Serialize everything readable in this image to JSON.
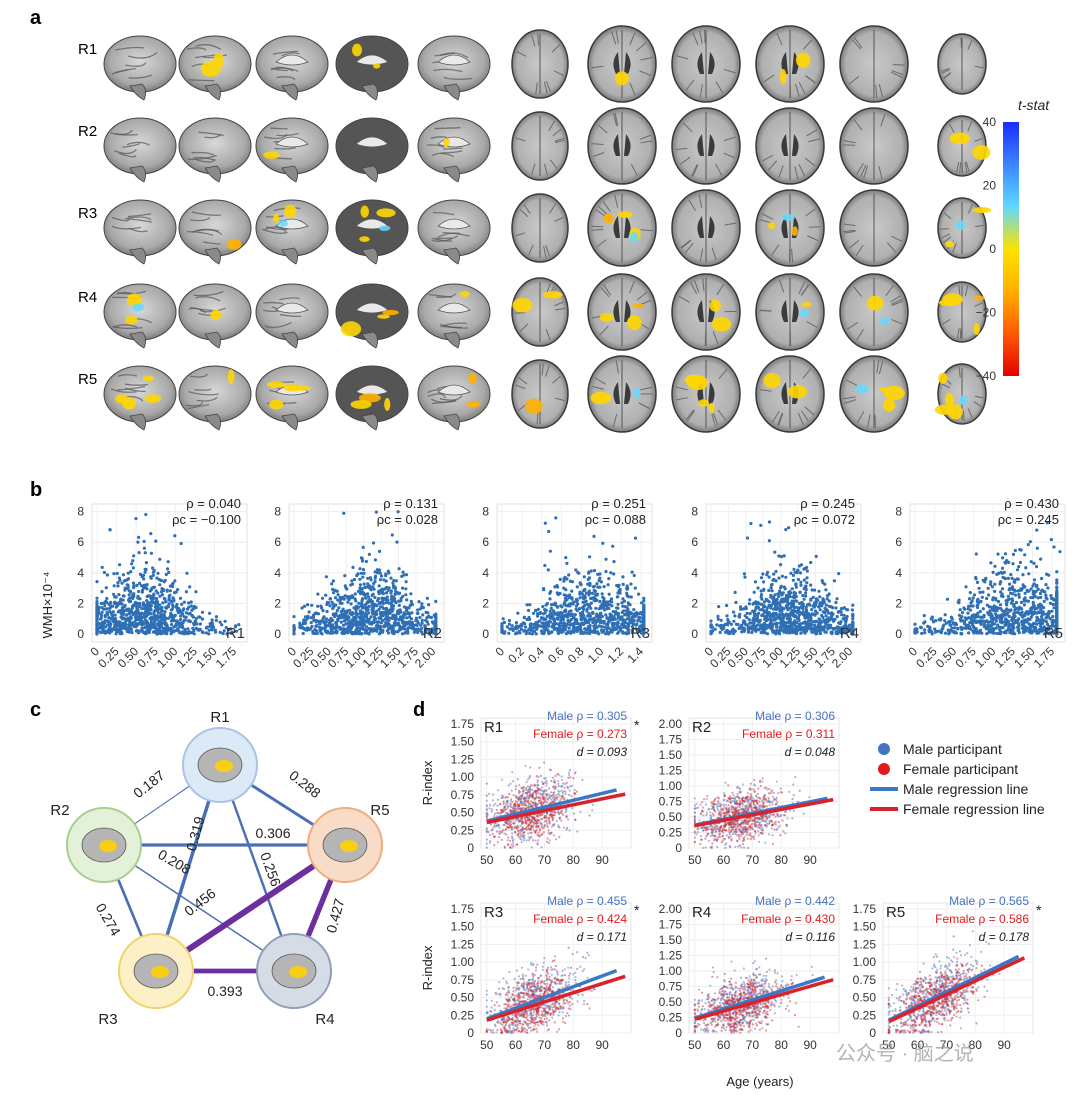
{
  "panels": {
    "a": "a",
    "b": "b",
    "c": "c",
    "d": "d"
  },
  "panel_a": {
    "rows": [
      "R1",
      "R2",
      "R3",
      "R4",
      "R5"
    ],
    "colorbar": {
      "title": "t-stat",
      "ticks": [
        "40",
        "20",
        "0",
        "−20",
        "−40"
      ],
      "colors": [
        "#1a2cff",
        "#3a86ff",
        "#5fd9ff",
        "#ffe100",
        "#ffb000",
        "#ff5a00",
        "#e60000"
      ]
    }
  },
  "panel_b": {
    "ylabel": "WMH×10⁻⁴",
    "yticks": [
      "8",
      "6",
      "4",
      "2",
      "0"
    ],
    "point_color": "#2e6fb5"
  },
  "panel_c": {
    "nodes": [
      "R1",
      "R2",
      "R3",
      "R4",
      "R5"
    ],
    "node_colors": [
      "#dce9f7",
      "#e3f1d8",
      "#fbf0c6",
      "#d5dce6",
      "#f9dcc7"
    ],
    "edge_colors": {
      "weak": "#4a6fb5",
      "strong": "#6b2fa0"
    }
  },
  "panel_d": {
    "ylabel": "R-index",
    "xlabel": "Age (years)",
    "legend": [
      {
        "label": "Male participant",
        "kind": "dot",
        "color": "#4472c4"
      },
      {
        "label": "Female participant",
        "kind": "dot",
        "color": "#e31a1c"
      },
      {
        "label": "Male regression line",
        "kind": "line",
        "color": "#3a78c8"
      },
      {
        "label": "Female regression line",
        "kind": "line",
        "color": "#d9232a"
      }
    ],
    "watermark": "公众号 · 脑之说"
  },
  "chart_data": [
    {
      "type": "scatter",
      "panel": "b",
      "ylabel": "WMH×10⁻⁴",
      "ylim": [
        0,
        8.5
      ],
      "series": [
        {
          "name": "R1",
          "rho": "ρ = 0.040",
          "rho_c": "ρc = −0.100",
          "xticks": [
            "0",
            "0.25",
            "0.50",
            "0.75",
            "1.00",
            "1.25",
            "1.50",
            "1.75"
          ],
          "xlim": [
            0,
            1.85
          ]
        },
        {
          "name": "R2",
          "rho": "ρ = 0.131",
          "rho_c": "ρc = 0.028",
          "xticks": [
            "0",
            "0.25",
            "0.50",
            "0.75",
            "1.00",
            "1.25",
            "1.50",
            "1.75",
            "2.00"
          ],
          "xlim": [
            0,
            2.05
          ]
        },
        {
          "name": "R3",
          "rho": "ρ = 0.251",
          "rho_c": "ρc = 0.088",
          "xticks": [
            "0",
            "0.2",
            "0.4",
            "0.6",
            "0.8",
            "1.0",
            "1.2",
            "1.4"
          ],
          "xlim": [
            0,
            1.5
          ]
        },
        {
          "name": "R4",
          "rho": "ρ = 0.245",
          "rho_c": "ρc = 0.072",
          "xticks": [
            "0",
            "0.25",
            "0.50",
            "0.75",
            "1.00",
            "1.25",
            "1.50",
            "1.75",
            "2.00"
          ],
          "xlim": [
            0,
            2.05
          ]
        },
        {
          "name": "R5",
          "rho": "ρ = 0.430",
          "rho_c": "ρc = 0.245",
          "xticks": [
            "0",
            "0.25",
            "0.50",
            "0.75",
            "1.00",
            "1.25",
            "1.50",
            "1.75"
          ],
          "xlim": [
            0,
            1.85
          ]
        }
      ]
    },
    {
      "type": "network",
      "panel": "c",
      "edges": [
        {
          "from": "R1",
          "to": "R2",
          "value": 0.187
        },
        {
          "from": "R1",
          "to": "R5",
          "value": 0.288
        },
        {
          "from": "R1",
          "to": "R3",
          "value": 0.319
        },
        {
          "from": "R1",
          "to": "R4",
          "value": 0.256
        },
        {
          "from": "R2",
          "to": "R5",
          "value": 0.306
        },
        {
          "from": "R2",
          "to": "R4",
          "value": 0.208
        },
        {
          "from": "R2",
          "to": "R3",
          "value": 0.274
        },
        {
          "from": "R3",
          "to": "R5",
          "value": 0.456
        },
        {
          "from": "R3",
          "to": "R4",
          "value": 0.393
        },
        {
          "from": "R4",
          "to": "R5",
          "value": 0.427
        }
      ]
    },
    {
      "type": "scatter",
      "panel": "d",
      "xlabel": "Age (years)",
      "ylabel": "R-index",
      "xlim": [
        48,
        100
      ],
      "xticks": [
        "50",
        "60",
        "70",
        "80",
        "90"
      ],
      "series": [
        {
          "name": "R1",
          "male": "Male ρ = 0.305",
          "female": "Female ρ = 0.273",
          "d": "d = 0.093",
          "sig": "*",
          "ymax": 1.75,
          "yticks": [
            "1.75",
            "1.50",
            "1.25",
            "1.00",
            "0.75",
            "0.50",
            "0.25",
            "0"
          ],
          "male_line": [
            [
              50,
              0.38
            ],
            [
              95,
              0.82
            ]
          ],
          "female_line": [
            [
              50,
              0.36
            ],
            [
              98,
              0.76
            ]
          ]
        },
        {
          "name": "R2",
          "male": "Male ρ = 0.306",
          "female": "Female ρ = 0.311",
          "d": "d = 0.048",
          "sig": "",
          "ymax": 2.0,
          "yticks": [
            "2.00",
            "1.75",
            "1.50",
            "1.25",
            "1.00",
            "0.75",
            "0.50",
            "0.25",
            "0"
          ],
          "male_line": [
            [
              50,
              0.37
            ],
            [
              96,
              0.8
            ]
          ],
          "female_line": [
            [
              50,
              0.36
            ],
            [
              98,
              0.78
            ]
          ]
        },
        {
          "name": "R3",
          "male": "Male ρ = 0.455",
          "female": "Female ρ = 0.424",
          "d": "d = 0.171",
          "sig": "*",
          "ymax": 1.75,
          "yticks": [
            "1.75",
            "1.50",
            "1.25",
            "1.00",
            "0.75",
            "0.50",
            "0.25",
            "0"
          ],
          "male_line": [
            [
              50,
              0.2
            ],
            [
              95,
              0.88
            ]
          ],
          "female_line": [
            [
              50,
              0.18
            ],
            [
              98,
              0.8
            ]
          ]
        },
        {
          "name": "R4",
          "male": "Male ρ = 0.442",
          "female": "Female ρ = 0.430",
          "d": "d = 0.116",
          "sig": "",
          "ymax": 2.0,
          "yticks": [
            "2.00",
            "1.75",
            "1.50",
            "1.25",
            "1.00",
            "0.75",
            "0.50",
            "0.25",
            "0"
          ],
          "male_line": [
            [
              50,
              0.24
            ],
            [
              95,
              0.9
            ]
          ],
          "female_line": [
            [
              50,
              0.22
            ],
            [
              98,
              0.86
            ]
          ]
        },
        {
          "name": "R5",
          "male": "Male ρ = 0.565",
          "female": "Female ρ = 0.586",
          "d": "d = 0.178",
          "sig": "*",
          "ymax": 1.75,
          "yticks": [
            "1.75",
            "1.50",
            "1.25",
            "1.00",
            "0.75",
            "0.50",
            "0.25",
            "0"
          ],
          "male_line": [
            [
              50,
              0.18
            ],
            [
              95,
              1.08
            ]
          ],
          "female_line": [
            [
              50,
              0.16
            ],
            [
              97,
              1.06
            ]
          ]
        }
      ]
    }
  ]
}
